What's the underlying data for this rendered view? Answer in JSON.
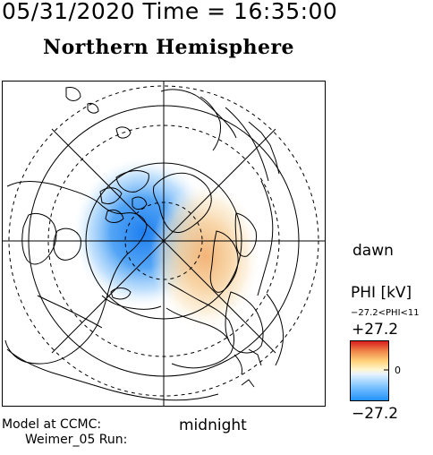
{
  "header": {
    "timestamp": "05/31/2020 Time = 16:35:00",
    "hemisphere_title": "Northern Hemisphere"
  },
  "map": {
    "projection": "polar stereographic, north pole centered",
    "field": "electric potential PHI",
    "solid_latitude_circles_deg": [
      80,
      60,
      40
    ],
    "dashed_latitude_circles_deg": [
      70,
      50,
      30
    ],
    "meridian_spacing_deg": 45,
    "potential_features": [
      {
        "sign": "negative",
        "color": "#1e7ff0",
        "location": "pre-noon/post-midnight sector near pole"
      },
      {
        "sign": "positive",
        "color": "#f0b070",
        "location": "dawn/post-midnight sector"
      }
    ]
  },
  "labels": {
    "dawn": "dawn",
    "midnight": "midnight",
    "model_line1": "Model at CCMC:",
    "model_line2": "Weimer_05 Run:"
  },
  "colorbar": {
    "title": "PHI [kV]",
    "range_text": "−27.2<PHI<11",
    "max_label": "+27.2",
    "zero_label": "0",
    "min_label": "−27.2",
    "colors": [
      "#1e90ff",
      "#7fc4ff",
      "#e6f2ff",
      "#fff6d0",
      "#ffd27a",
      "#f08a4b",
      "#d8191e"
    ]
  }
}
